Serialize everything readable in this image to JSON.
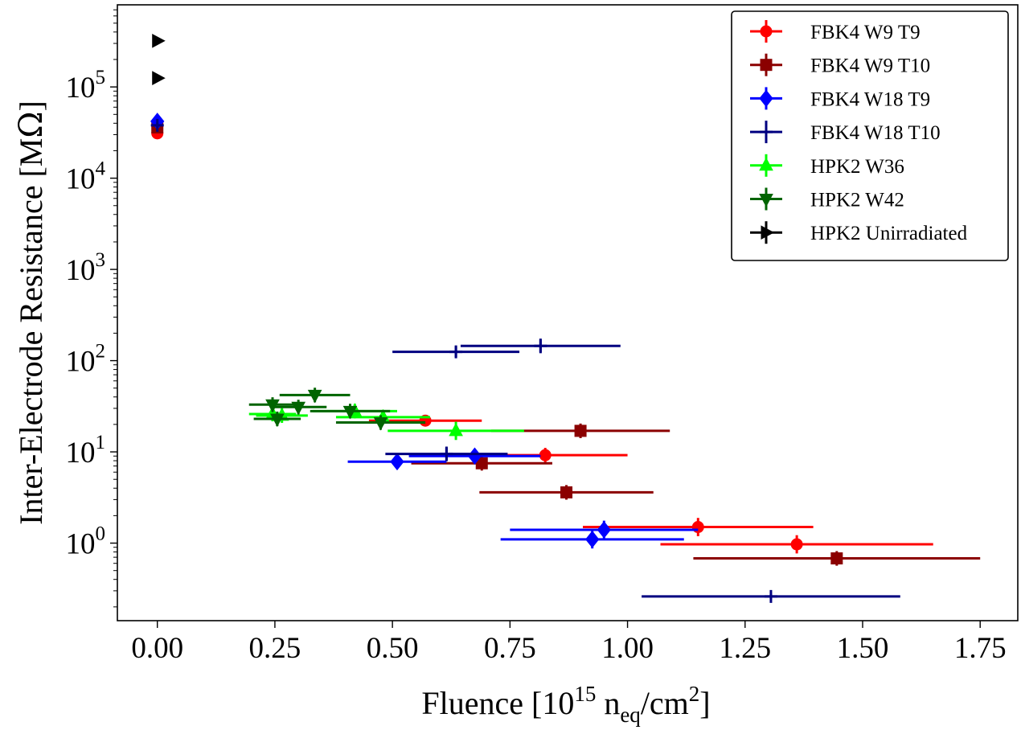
{
  "chart_data": {
    "type": "scatter",
    "title": "",
    "xlabel": {
      "main": "Fluence [10",
      "sup1": "15",
      "mid": " n",
      "sub": "eq",
      "mid2": "/cm",
      "sup2": "2",
      "end": "]"
    },
    "ylabel": {
      "main": "Inter-Electrode Resistance [M",
      "omega": "Ω",
      "end": "]"
    },
    "xlim": [
      -0.085,
      1.83
    ],
    "ylim_log10": [
      -0.85,
      5.9
    ],
    "yscale": "log",
    "x_ticks": [
      0.0,
      0.25,
      0.5,
      0.75,
      1.0,
      1.25,
      1.5,
      1.75
    ],
    "x_tick_labels": [
      "0.00",
      "0.25",
      "0.50",
      "0.75",
      "1.00",
      "1.25",
      "1.50",
      "1.75"
    ],
    "y_tick_exponents": [
      0,
      1,
      2,
      3,
      4,
      5
    ],
    "y_tick_base": "10",
    "legend_position": "top-right",
    "series": [
      {
        "name": "FBK4 W9 T9",
        "color": "#ff0000",
        "marker": "circle",
        "points": [
          {
            "x": 0.0,
            "y": 31000,
            "xerr": 0.0,
            "yerr_log": 0.02
          },
          {
            "x": 0.57,
            "y": 22,
            "xerr": 0.12,
            "yerr_log": 0.06
          },
          {
            "x": 0.825,
            "y": 9.2,
            "xerr": 0.175,
            "yerr_log": 0.08
          },
          {
            "x": 1.15,
            "y": 1.5,
            "xerr": 0.245,
            "yerr_log": 0.1
          },
          {
            "x": 1.36,
            "y": 0.97,
            "xerr": 0.29,
            "yerr_log": 0.1
          }
        ]
      },
      {
        "name": "FBK4 W9 T10",
        "color": "#8b0000",
        "marker": "square",
        "points": [
          {
            "x": 0.0,
            "y": 36000,
            "xerr": 0.0,
            "yerr_log": 0.02
          },
          {
            "x": 0.9,
            "y": 17,
            "xerr": 0.19,
            "yerr_log": 0.08
          },
          {
            "x": 0.69,
            "y": 7.5,
            "xerr": 0.15,
            "yerr_log": 0.08
          },
          {
            "x": 0.87,
            "y": 3.6,
            "xerr": 0.185,
            "yerr_log": 0.08
          },
          {
            "x": 1.445,
            "y": 0.68,
            "xerr": 0.305,
            "yerr_log": 0.08
          }
        ]
      },
      {
        "name": "FBK4 W18 T9",
        "color": "#0000ff",
        "marker": "diamond",
        "points": [
          {
            "x": 0.0,
            "y": 42000,
            "xerr": 0.0,
            "yerr_log": 0.02
          },
          {
            "x": 0.51,
            "y": 7.8,
            "xerr": 0.105,
            "yerr_log": 0.08
          },
          {
            "x": 0.675,
            "y": 9.0,
            "xerr": 0.14,
            "yerr_log": 0.08
          },
          {
            "x": 0.95,
            "y": 1.4,
            "xerr": 0.2,
            "yerr_log": 0.1
          },
          {
            "x": 0.925,
            "y": 1.1,
            "xerr": 0.195,
            "yerr_log": 0.1
          }
        ]
      },
      {
        "name": "FBK4 W18 T10",
        "color": "#000080",
        "marker": "plus",
        "points": [
          {
            "x": 0.0,
            "y": 38000,
            "xerr": 0.0,
            "yerr_log": 0.02
          },
          {
            "x": 0.635,
            "y": 125,
            "xerr": 0.135,
            "yerr_log": 0.06
          },
          {
            "x": 0.815,
            "y": 145,
            "xerr": 0.17,
            "yerr_log": 0.08
          },
          {
            "x": 0.615,
            "y": 9.5,
            "xerr": 0.13,
            "yerr_log": 0.08
          },
          {
            "x": 1.305,
            "y": 0.26,
            "xerr": 0.275,
            "yerr_log": 0.02
          }
        ]
      },
      {
        "name": "HPK2 W36",
        "color": "#00ff00",
        "marker": "triangle-up",
        "points": [
          {
            "x": 0.245,
            "y": 26,
            "xerr": 0.05,
            "yerr_log": 0.08
          },
          {
            "x": 0.265,
            "y": 25,
            "xerr": 0.055,
            "yerr_log": 0.08
          },
          {
            "x": 0.42,
            "y": 28,
            "xerr": 0.09,
            "yerr_log": 0.08
          },
          {
            "x": 0.48,
            "y": 24,
            "xerr": 0.1,
            "yerr_log": 0.08
          },
          {
            "x": 0.635,
            "y": 17,
            "xerr": 0.145,
            "yerr_log": 0.1
          }
        ]
      },
      {
        "name": "HPK2 W42",
        "color": "#006400",
        "marker": "triangle-down",
        "points": [
          {
            "x": 0.245,
            "y": 33,
            "xerr": 0.05,
            "yerr_log": 0.08
          },
          {
            "x": 0.255,
            "y": 23,
            "xerr": 0.05,
            "yerr_log": 0.08
          },
          {
            "x": 0.3,
            "y": 31,
            "xerr": 0.06,
            "yerr_log": 0.08
          },
          {
            "x": 0.335,
            "y": 42,
            "xerr": 0.075,
            "yerr_log": 0.08
          },
          {
            "x": 0.41,
            "y": 28,
            "xerr": 0.085,
            "yerr_log": 0.08
          },
          {
            "x": 0.475,
            "y": 21,
            "xerr": 0.095,
            "yerr_log": 0.08
          }
        ]
      },
      {
        "name": "HPK2 Unirradiated",
        "color": "#000000",
        "marker": "triangle-right",
        "points": [
          {
            "x": 0.0,
            "y": 320000,
            "xerr": 0.0,
            "yerr_log": 0.03
          },
          {
            "x": 0.0,
            "y": 125000,
            "xerr": 0.0,
            "yerr_log": 0.03
          }
        ]
      }
    ]
  }
}
